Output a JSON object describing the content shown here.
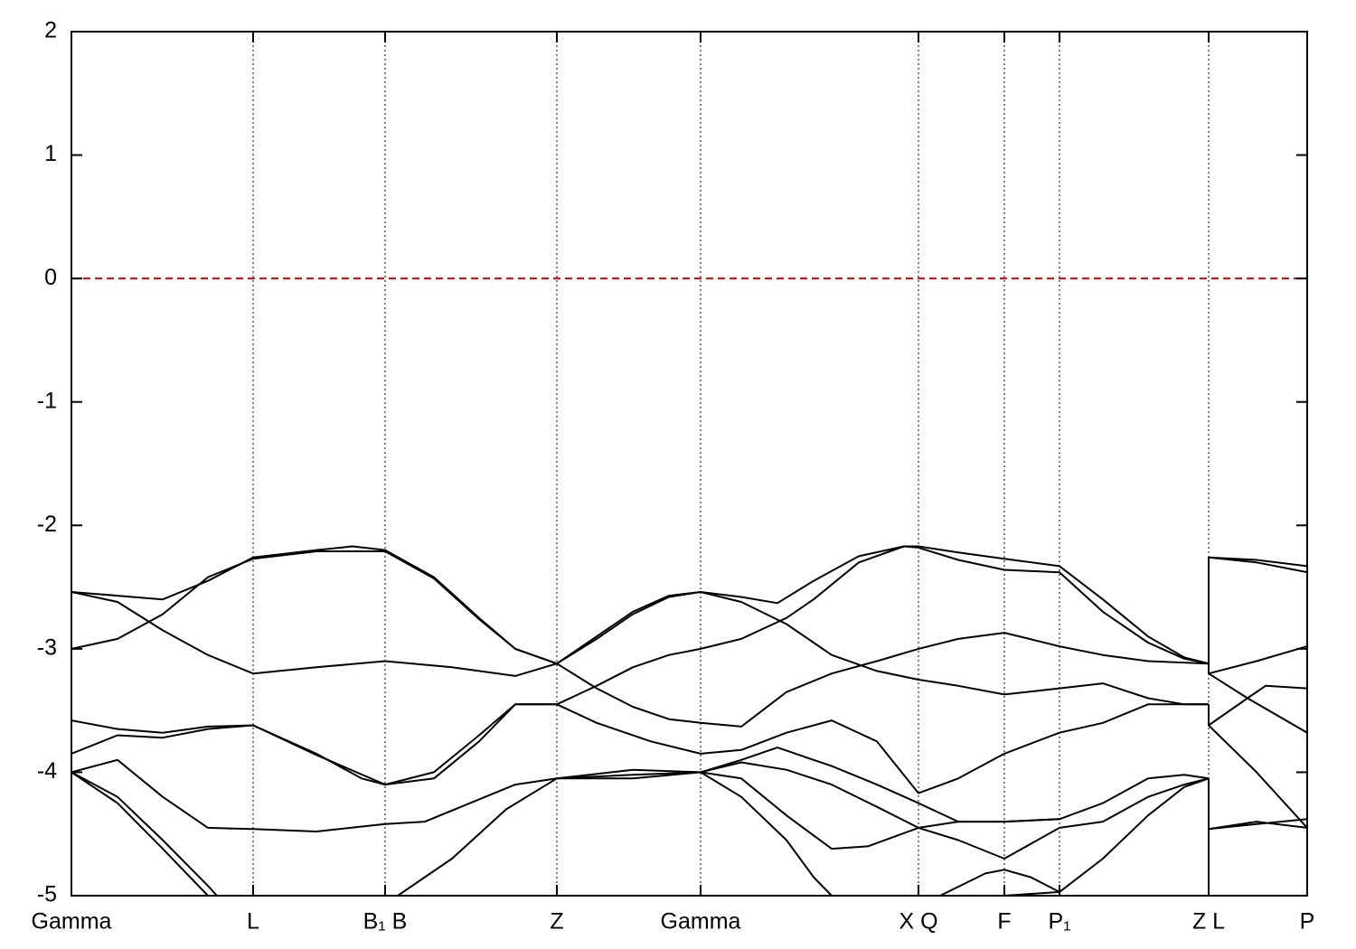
{
  "chart_data": {
    "type": "line",
    "color": "#000000",
    "xlim": [
      0,
      13.67
    ],
    "ylim": [
      -5,
      2
    ],
    "yticks": [
      -5,
      -4,
      -3,
      -2,
      -1,
      0,
      1,
      2
    ],
    "xticks": [
      {
        "value": 0,
        "label": "Gamma"
      },
      {
        "value": 2.01,
        "label": "L"
      },
      {
        "value": 3.47,
        "label": "B₁ B"
      },
      {
        "value": 5.37,
        "label": "Z"
      },
      {
        "value": 6.96,
        "label": "Gamma"
      },
      {
        "value": 9.37,
        "label": "X Q"
      },
      {
        "value": 10.32,
        "label": "F"
      },
      {
        "value": 10.93,
        "label": "P₁"
      },
      {
        "value": 12.58,
        "label": "Z L"
      },
      {
        "value": 13.67,
        "label": "P"
      }
    ],
    "xgrid": true,
    "reference_line": {
      "y": 0,
      "color": "#dd0000"
    },
    "series": [
      {
        "x": [
          0,
          0.51,
          1.01,
          1.51,
          2.01,
          2.71,
          3.11,
          3.47,
          4.01,
          4.51,
          4.91,
          5.37,
          5.81,
          6.21,
          6.61,
          6.96,
          7.41,
          7.81,
          8.21,
          8.71,
          9.21,
          9.37,
          9.81,
          10.32,
          10.93,
          11.41,
          11.91,
          12.31,
          12.58
        ],
        "values": [
          -2.54,
          -2.57,
          -2.6,
          -2.45,
          -2.26,
          -2.2,
          -2.17,
          -2.2,
          -2.42,
          -2.75,
          -3.0,
          -3.12,
          -2.9,
          -2.7,
          -2.57,
          -2.54,
          -2.58,
          -2.63,
          -2.45,
          -2.25,
          -2.17,
          -2.17,
          -2.22,
          -2.27,
          -2.33,
          -2.6,
          -2.9,
          -3.07,
          -3.12
        ]
      },
      {
        "x": [
          0,
          0.51,
          1.01,
          1.51,
          2.01,
          2.71,
          3.47,
          4.21,
          4.91,
          5.37,
          5.81,
          6.21,
          6.61,
          6.96,
          7.41,
          7.91,
          8.41,
          8.91,
          9.37,
          9.81,
          10.32,
          10.93,
          11.41,
          11.91,
          12.31,
          12.58
        ],
        "values": [
          -2.54,
          -2.62,
          -2.85,
          -3.05,
          -3.2,
          -3.15,
          -3.1,
          -3.15,
          -3.22,
          -3.12,
          -2.92,
          -2.72,
          -2.58,
          -2.54,
          -2.62,
          -2.8,
          -3.05,
          -3.18,
          -3.25,
          -3.3,
          -3.37,
          -3.32,
          -3.28,
          -3.4,
          -3.45,
          -3.45
        ]
      },
      {
        "x": [
          0,
          0.51,
          1.01,
          1.51,
          2.01,
          2.71,
          3.47,
          4.01,
          4.51,
          4.91,
          5.37,
          5.81,
          6.21,
          6.61,
          6.96,
          7.41,
          7.91,
          8.41,
          8.91,
          9.37,
          9.81,
          10.32,
          10.93,
          11.41,
          11.91,
          12.58
        ],
        "values": [
          -3.0,
          -2.92,
          -2.72,
          -2.42,
          -2.27,
          -2.21,
          -2.21,
          -2.43,
          -2.76,
          -3.0,
          -3.12,
          -3.32,
          -3.47,
          -3.57,
          -3.6,
          -3.63,
          -3.35,
          -3.2,
          -3.1,
          -3.0,
          -2.92,
          -2.87,
          -2.98,
          -3.05,
          -3.1,
          -3.12
        ]
      },
      {
        "x": [
          0,
          0.51,
          1.01,
          1.51,
          2.01,
          2.71,
          3.21,
          3.47,
          4.01,
          4.51,
          4.91,
          5.37,
          5.81,
          6.41,
          6.96,
          7.41,
          7.91,
          8.41,
          8.91,
          9.37,
          9.81,
          10.32,
          10.93,
          11.41,
          11.91,
          12.31,
          12.58
        ],
        "values": [
          -3.58,
          -3.65,
          -3.68,
          -3.63,
          -3.62,
          -3.85,
          -4.05,
          -4.1,
          -4.0,
          -3.7,
          -3.45,
          -3.45,
          -3.6,
          -3.75,
          -3.85,
          -3.82,
          -3.68,
          -3.58,
          -3.75,
          -4.17,
          -4.05,
          -3.85,
          -3.68,
          -3.6,
          -3.45,
          -3.45,
          -3.45
        ]
      },
      {
        "x": [
          0,
          0.51,
          1.01,
          1.51,
          2.01,
          2.71,
          3.47,
          4.01,
          4.51,
          4.91,
          5.37,
          5.81,
          6.21,
          6.61,
          6.96,
          7.41,
          7.91,
          8.21,
          8.71,
          9.21,
          9.37,
          9.81,
          10.32,
          10.93,
          11.41,
          11.91,
          12.31,
          12.58
        ],
        "values": [
          -3.85,
          -3.7,
          -3.72,
          -3.65,
          -3.62,
          -3.86,
          -4.1,
          -4.05,
          -3.75,
          -3.45,
          -3.45,
          -3.3,
          -3.15,
          -3.05,
          -3.0,
          -2.92,
          -2.75,
          -2.6,
          -2.3,
          -2.17,
          -2.18,
          -2.28,
          -2.36,
          -2.38,
          -2.7,
          -2.95,
          -3.08,
          -3.12
        ]
      },
      {
        "x": [
          0,
          0.51,
          1.01,
          1.51,
          2.01,
          2.71,
          3.47,
          3.91,
          4.41,
          4.91,
          5.37,
          6.21,
          6.96,
          7.41,
          7.91,
          8.41,
          8.91,
          9.37,
          9.81,
          10.32,
          10.93,
          11.41,
          11.91,
          12.31,
          12.58
        ],
        "values": [
          -4.0,
          -3.9,
          -4.2,
          -4.45,
          -4.46,
          -4.48,
          -4.42,
          -4.4,
          -4.25,
          -4.1,
          -4.05,
          -4.02,
          -4.0,
          -3.92,
          -3.98,
          -4.1,
          -4.28,
          -4.45,
          -4.55,
          -4.7,
          -4.45,
          -4.4,
          -4.2,
          -4.1,
          -4.05
        ]
      },
      {
        "x": [
          0,
          0.51,
          1.01,
          1.51,
          1.61,
          2.6,
          3.61,
          4.21,
          4.81,
          5.37,
          6.21,
          6.96,
          7.41,
          7.91,
          8.21,
          8.41
        ],
        "values": [
          -4.0,
          -4.2,
          -4.55,
          -4.92,
          -5.0,
          null,
          -5.0,
          -4.7,
          -4.3,
          -4.05,
          -4.05,
          -4.0,
          -4.2,
          -4.55,
          -4.85,
          -5.0
        ]
      },
      {
        "x": [
          0,
          0.51,
          1.01,
          1.51
        ],
        "values": [
          -4.0,
          -4.25,
          -4.62,
          -5.0
        ]
      },
      {
        "x": [
          5.37,
          6.21,
          6.96,
          7.41,
          7.91,
          8.41,
          8.81,
          9.37,
          9.81,
          10.32,
          10.93,
          11.41,
          11.91,
          12.31,
          12.58
        ],
        "values": [
          -4.05,
          -3.98,
          -4.0,
          -4.05,
          -4.35,
          -4.62,
          -4.6,
          -4.45,
          -4.4,
          -4.4,
          -4.38,
          -4.25,
          -4.05,
          -4.02,
          -4.05
        ]
      },
      {
        "x": [
          6.96,
          7.41,
          7.81,
          8.41,
          8.91,
          9.37,
          9.81,
          10.32,
          10.93
        ],
        "values": [
          -4.0,
          -3.9,
          -3.8,
          -3.95,
          -4.1,
          -4.25,
          -4.4,
          -4.4,
          -4.38
        ]
      },
      {
        "x": [
          9.61,
          10.11,
          10.32,
          10.61,
          10.93,
          11.41,
          11.91,
          12.31,
          12.58
        ],
        "values": [
          -5.0,
          -4.82,
          -4.79,
          -4.85,
          -4.97,
          -4.7,
          -4.35,
          -4.12,
          -4.05
        ]
      },
      {
        "x": [
          10.32,
          10.93
        ],
        "values": [
          -5.0,
          -4.97
        ]
      },
      {
        "x": [
          12.58,
          12.58,
          13.11,
          13.67
        ],
        "values": [
          -3.12,
          -2.26,
          -2.28,
          -2.33
        ]
      },
      {
        "x": [
          12.58,
          13.11,
          13.67
        ],
        "values": [
          -2.26,
          -2.3,
          -2.38
        ]
      },
      {
        "x": [
          12.58,
          12.58,
          13.11,
          13.67
        ],
        "values": [
          -3.12,
          -3.2,
          -3.1,
          -2.98
        ]
      },
      {
        "x": [
          12.58,
          13.01,
          13.67
        ],
        "values": [
          -3.2,
          -3.4,
          -3.68
        ]
      },
      {
        "x": [
          12.58,
          12.58,
          13.01,
          13.21,
          13.67
        ],
        "values": [
          -3.45,
          -3.62,
          -3.4,
          -3.3,
          -3.32
        ]
      },
      {
        "x": [
          12.58,
          13.11,
          13.67
        ],
        "values": [
          -3.62,
          -4.0,
          -4.45
        ]
      },
      {
        "x": [
          12.58,
          12.58,
          13.11,
          13.67
        ],
        "values": [
          -4.05,
          -4.46,
          -4.42,
          -4.38
        ]
      },
      {
        "x": [
          12.58,
          12.58,
          13.11,
          13.67
        ],
        "values": [
          -5.0,
          -4.46,
          -4.4,
          -4.45
        ]
      }
    ]
  }
}
